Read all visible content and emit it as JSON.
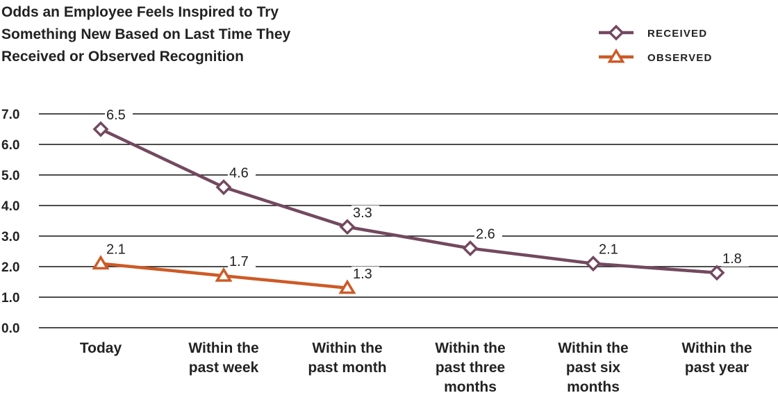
{
  "chart_data": {
    "type": "line",
    "title": [
      "Odds an Employee Feels Inspired to Try",
      "Something New Based on Last Time They",
      "Received or Observed Recognition"
    ],
    "categories": [
      [
        "Today"
      ],
      [
        "Within the",
        "past week"
      ],
      [
        "Within the",
        "past month"
      ],
      [
        "Within the",
        "past three",
        "months"
      ],
      [
        "Within the",
        "past six",
        "months"
      ],
      [
        "Within the",
        "past year"
      ]
    ],
    "yticks": [
      "0.0",
      "1.0",
      "2.0",
      "3.0",
      "4.0",
      "5.0",
      "6.0",
      "7.0"
    ],
    "ylim": [
      0,
      7
    ],
    "grid": true,
    "legend_position": "top-right",
    "series": [
      {
        "name": "RECEIVED",
        "color": "#73495f",
        "marker": "diamond",
        "values": [
          6.5,
          4.6,
          3.3,
          2.6,
          2.1,
          1.8
        ],
        "labels": [
          "6.5",
          "4.6",
          "3.3",
          "2.6",
          "2.1",
          "1.8"
        ]
      },
      {
        "name": "OBSERVED",
        "color": "#cd5a26",
        "marker": "triangle",
        "values": [
          2.1,
          1.7,
          1.3,
          null,
          null,
          null
        ],
        "labels": [
          "2.1",
          "1.7",
          "1.3"
        ]
      }
    ]
  }
}
